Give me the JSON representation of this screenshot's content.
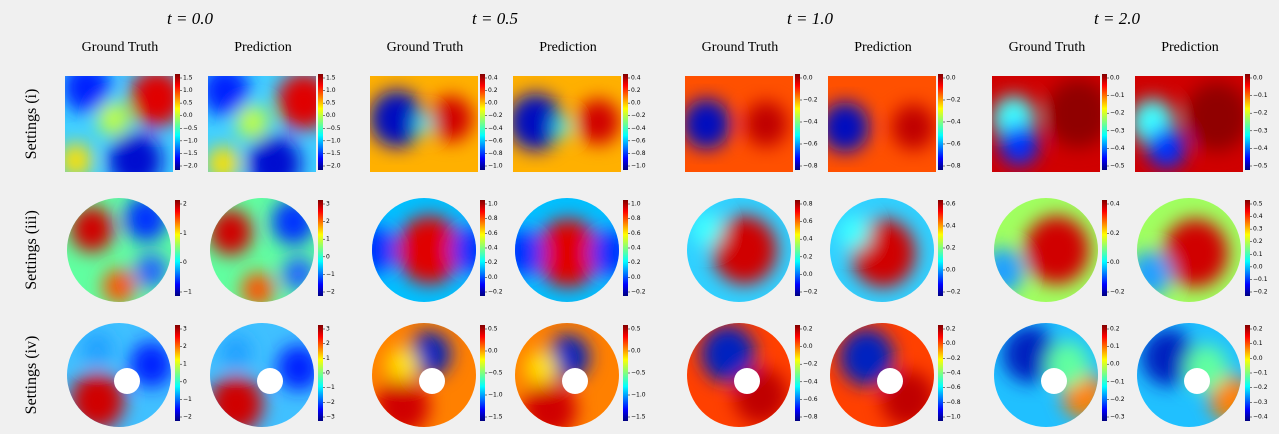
{
  "columns": [
    {
      "time": "t = 0.0",
      "labels": [
        "Ground Truth",
        "Prediction"
      ]
    },
    {
      "time": "t = 0.5",
      "labels": [
        "Ground Truth",
        "Prediction"
      ]
    },
    {
      "time": "t = 1.0",
      "labels": [
        "Ground Truth",
        "Prediction"
      ]
    },
    {
      "time": "t = 2.0",
      "labels": [
        "Ground Truth",
        "Prediction"
      ]
    }
  ],
  "rows": [
    {
      "label": "Settings (i)",
      "colorbars": [
        [
          "1.5",
          "1.0",
          "0.5",
          "0.0",
          "−0.5",
          "−1.0",
          "−1.5",
          "−2.0"
        ],
        [
          "1.5",
          "1.0",
          "0.5",
          "0.0",
          "−0.5",
          "−1.0",
          "−1.5",
          "−2.0"
        ],
        [
          "0.4",
          "0.2",
          "0.0",
          "−0.2",
          "−0.4",
          "−0.6",
          "−0.8",
          "−1.0"
        ],
        [
          "0.4",
          "0.2",
          "0.0",
          "−0.2",
          "−0.4",
          "−0.6",
          "−0.8",
          "−1.0"
        ],
        [
          "0.0",
          "−0.2",
          "−0.4",
          "−0.6",
          "−0.8"
        ],
        [
          "0.0",
          "−0.2",
          "−0.4",
          "−0.6",
          "−0.8"
        ],
        [
          "0.0",
          "−0.1",
          "−0.2",
          "−0.3",
          "−0.4",
          "−0.5"
        ],
        [
          "0.0",
          "−0.1",
          "−0.2",
          "−0.3",
          "−0.4",
          "−0.5"
        ]
      ]
    },
    {
      "label": "Settings (iii)",
      "colorbars": [
        [
          "2",
          "1",
          "0",
          "−1"
        ],
        [
          "3",
          "2",
          "1",
          "0",
          "−1",
          "−2"
        ],
        [
          "1.0",
          "0.8",
          "0.6",
          "0.4",
          "0.2",
          "0.0",
          "−0.2"
        ],
        [
          "1.0",
          "0.8",
          "0.6",
          "0.4",
          "0.2",
          "0.0",
          "−0.2"
        ],
        [
          "0.8",
          "0.6",
          "0.4",
          "0.2",
          "0.0",
          "−0.2"
        ],
        [
          "0.6",
          "0.4",
          "0.2",
          "0.0",
          "−0.2"
        ],
        [
          "0.4",
          "0.2",
          "0.0",
          "−0.2"
        ],
        [
          "0.5",
          "0.4",
          "0.3",
          "0.2",
          "0.1",
          "0.0",
          "−0.1",
          "−0.2"
        ]
      ]
    },
    {
      "label": "Settings (iv)",
      "colorbars": [
        [
          "3",
          "2",
          "1",
          "0",
          "−1",
          "−2"
        ],
        [
          "3",
          "2",
          "1",
          "0",
          "−1",
          "−2",
          "−3"
        ],
        [
          "0.5",
          "0.0",
          "−0.5",
          "−1.0",
          "−1.5"
        ],
        [
          "0.5",
          "0.0",
          "−0.5",
          "−1.0",
          "−1.5"
        ],
        [
          "0.2",
          "0.0",
          "−0.2",
          "−0.4",
          "−0.6",
          "−0.8"
        ],
        [
          "0.2",
          "0.0",
          "−0.2",
          "−0.4",
          "−0.6",
          "−0.8",
          "−1.0"
        ],
        [
          "0.2",
          "0.1",
          "0.0",
          "−0.1",
          "−0.2",
          "−0.3"
        ],
        [
          "0.2",
          "0.1",
          "0.0",
          "−0.1",
          "−0.2",
          "−0.3",
          "−0.4"
        ]
      ]
    }
  ]
}
